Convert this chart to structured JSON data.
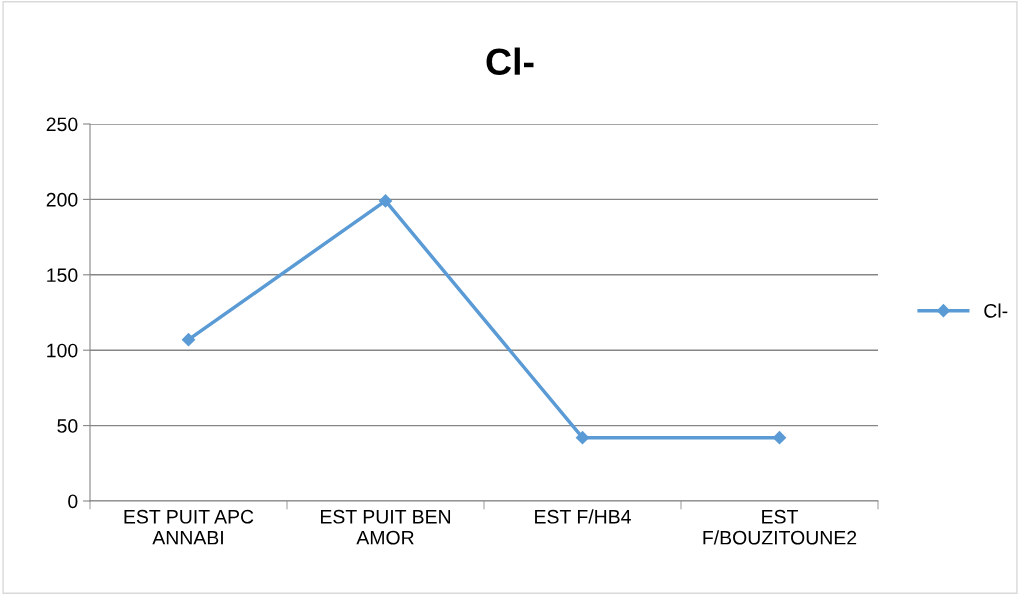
{
  "chart_data": {
    "type": "line",
    "title": "Cl-",
    "categories": [
      "EST PUIT APC ANNABI",
      "EST PUIT BEN AMOR",
      "EST F/HB4",
      "EST F/BOUZITOUNE2"
    ],
    "series": [
      {
        "name": "Cl-",
        "color": "#5b9bd5",
        "values": [
          107,
          199,
          42,
          42
        ]
      }
    ],
    "ylim": [
      0,
      250
    ],
    "yticks": [
      0,
      50,
      100,
      150,
      200,
      250
    ],
    "grid": "y",
    "legend": "right",
    "marker": "diamond",
    "line_style": "solid"
  }
}
